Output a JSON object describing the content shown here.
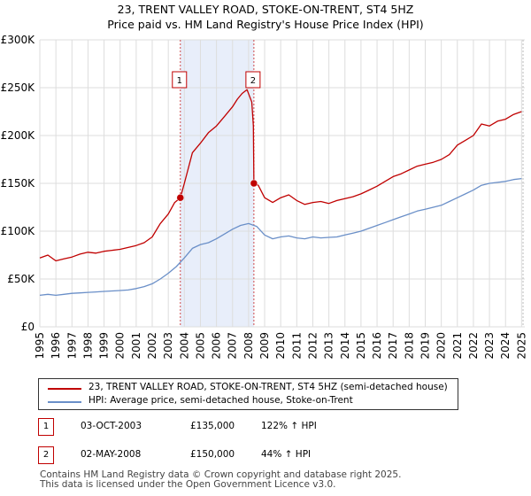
{
  "title": "23, TRENT VALLEY ROAD, STOKE-ON-TRENT, ST4 5HZ",
  "subtitle": "Price paid vs. HM Land Registry's House Price Index (HPI)",
  "colors": {
    "property": "#c00000",
    "hpi": "#6a8fc8",
    "shade": "#e8eefa",
    "grid": "#dddddd"
  },
  "chart_data": {
    "type": "line",
    "title": "23, TRENT VALLEY ROAD, STOKE-ON-TRENT, ST4 5HZ",
    "xlim": [
      1995,
      2025.2
    ],
    "ylim": [
      0,
      300000
    ],
    "x_ticks": [
      1995,
      1996,
      1997,
      1998,
      1999,
      2000,
      2001,
      2002,
      2003,
      2004,
      2005,
      2006,
      2007,
      2008,
      2009,
      2010,
      2011,
      2012,
      2013,
      2014,
      2015,
      2016,
      2017,
      2018,
      2019,
      2020,
      2021,
      2022,
      2023,
      2024,
      2025
    ],
    "y_ticks": [
      {
        "value": 0,
        "label": "£0"
      },
      {
        "value": 50000,
        "label": "£50K"
      },
      {
        "value": 100000,
        "label": "£100K"
      },
      {
        "value": 150000,
        "label": "£150K"
      },
      {
        "value": 200000,
        "label": "£200K"
      },
      {
        "value": 250000,
        "label": "£250K"
      },
      {
        "value": 300000,
        "label": "£300K"
      }
    ],
    "shaded_range": [
      2003.75,
      2008.33
    ],
    "series": [
      {
        "name": "23, TRENT VALLEY ROAD, STOKE-ON-TRENT, ST4 5HZ (semi-detached house)",
        "x": [
          1995,
          1995.5,
          1996,
          1996.5,
          1997,
          1997.5,
          1998,
          1998.5,
          1999,
          1999.5,
          2000,
          2000.5,
          2001,
          2001.5,
          2002,
          2002.5,
          2003,
          2003.4,
          2003.75,
          2004,
          2004.5,
          2005,
          2005.5,
          2006,
          2006.5,
          2007,
          2007.3,
          2007.6,
          2007.9,
          2008.2,
          2008.3,
          2008.33,
          2008.6,
          2009,
          2009.5,
          2010,
          2010.5,
          2011,
          2011.5,
          2012,
          2012.5,
          2013,
          2013.5,
          2014,
          2014.5,
          2015,
          2015.5,
          2016,
          2016.5,
          2017,
          2017.5,
          2018,
          2018.5,
          2019,
          2019.5,
          2020,
          2020.5,
          2021,
          2021.5,
          2022,
          2022.5,
          2023,
          2023.5,
          2024,
          2024.5,
          2025
        ],
        "values": [
          72000,
          75000,
          69000,
          71000,
          73000,
          76000,
          78000,
          77000,
          79000,
          80000,
          81000,
          83000,
          85000,
          88000,
          94000,
          108000,
          118000,
          130000,
          135000,
          150000,
          182000,
          192000,
          203000,
          210000,
          220000,
          230000,
          238000,
          244000,
          248000,
          235000,
          210000,
          150000,
          148000,
          135000,
          130000,
          135000,
          138000,
          132000,
          128000,
          130000,
          131000,
          129000,
          132000,
          134000,
          136000,
          139000,
          143000,
          147000,
          152000,
          157000,
          160000,
          164000,
          168000,
          170000,
          172000,
          175000,
          180000,
          190000,
          195000,
          200000,
          212000,
          210000,
          215000,
          217000,
          222000,
          225000
        ]
      },
      {
        "name": "HPI: Average price, semi-detached house, Stoke-on-Trent",
        "x": [
          1995,
          1995.5,
          1996,
          1996.5,
          1997,
          1997.5,
          1998,
          1998.5,
          1999,
          1999.5,
          2000,
          2000.5,
          2001,
          2001.5,
          2002,
          2002.5,
          2003,
          2003.5,
          2004,
          2004.5,
          2005,
          2005.5,
          2006,
          2006.5,
          2007,
          2007.5,
          2008,
          2008.5,
          2009,
          2009.5,
          2010,
          2010.5,
          2011,
          2011.5,
          2012,
          2012.5,
          2013,
          2013.5,
          2014,
          2014.5,
          2015,
          2015.5,
          2016,
          2016.5,
          2017,
          2017.5,
          2018,
          2018.5,
          2019,
          2019.5,
          2020,
          2020.5,
          2021,
          2021.5,
          2022,
          2022.5,
          2023,
          2023.5,
          2024,
          2024.5,
          2025
        ],
        "values": [
          33000,
          34000,
          33000,
          34000,
          35000,
          35500,
          36000,
          36500,
          37000,
          37500,
          38000,
          38500,
          40000,
          42000,
          45000,
          50000,
          56000,
          63000,
          72000,
          82000,
          86000,
          88000,
          92000,
          97000,
          102000,
          106000,
          108000,
          105000,
          96000,
          92000,
          94000,
          95000,
          93000,
          92000,
          94000,
          93000,
          93500,
          94000,
          96000,
          98000,
          100000,
          103000,
          106000,
          109000,
          112000,
          115000,
          118000,
          121000,
          123000,
          125000,
          127000,
          131000,
          135000,
          139000,
          143000,
          148000,
          150000,
          151000,
          152000,
          154000,
          155000
        ]
      }
    ],
    "annotations": [
      {
        "label": "1",
        "x": 2003.75,
        "y": 135000
      },
      {
        "label": "2",
        "x": 2008.33,
        "y": 150000
      }
    ]
  },
  "legend": {
    "property_label": "23, TRENT VALLEY ROAD, STOKE-ON-TRENT, ST4 5HZ (semi-detached house)",
    "hpi_label": "HPI: Average price, semi-detached house, Stoke-on-Trent"
  },
  "sales": [
    {
      "num": "1",
      "date": "03-OCT-2003",
      "price": "£135,000",
      "hpi": "122% ↑ HPI"
    },
    {
      "num": "2",
      "date": "02-MAY-2008",
      "price": "£150,000",
      "hpi": "44% ↑ HPI"
    }
  ],
  "footer": {
    "line1": "Contains HM Land Registry data © Crown copyright and database right 2025.",
    "line2": "This data is licensed under the Open Government Licence v3.0."
  }
}
